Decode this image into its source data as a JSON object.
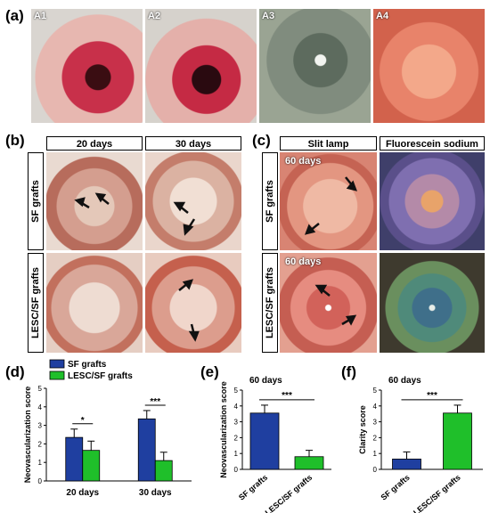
{
  "panels": {
    "a": {
      "letter": "(a)",
      "images": [
        {
          "label": "A1"
        },
        {
          "label": "A2"
        },
        {
          "label": "A3"
        },
        {
          "label": "A4"
        }
      ]
    },
    "b": {
      "letter": "(b)",
      "col_headers": [
        "20 days",
        "30 days"
      ],
      "row_headers": [
        "SF grafts",
        "LESC/SF grafts"
      ]
    },
    "c": {
      "letter": "(c)",
      "col_headers": [
        "Slit lamp",
        "Fluorescein sodium"
      ],
      "row_headers": [
        "SF grafts",
        "LESC/SF grafts"
      ],
      "day_labels": [
        "60 days",
        "60 days"
      ]
    },
    "d": {
      "letter": "(d)"
    },
    "e": {
      "letter": "(e)"
    },
    "f": {
      "letter": "(f)"
    }
  },
  "colors": {
    "sf": "#1f3fa0",
    "lesc": "#1fbf2a"
  },
  "chart_data": [
    {
      "id": "d",
      "type": "bar",
      "categories": [
        "20 days",
        "30 days"
      ],
      "series": [
        {
          "name": "SF grafts",
          "values": [
            2.35,
            3.35
          ],
          "errors": [
            0.45,
            0.45
          ]
        },
        {
          "name": "LESC/SF grafts",
          "values": [
            1.65,
            1.1
          ],
          "errors": [
            0.5,
            0.45
          ]
        }
      ],
      "ylabel": "Neovascularization score",
      "ylim": [
        0,
        5
      ],
      "yticks": [
        "0",
        "1",
        "2",
        "3",
        "4",
        "5"
      ],
      "significance": [
        "*",
        "***"
      ],
      "legend": "top-left"
    },
    {
      "id": "e",
      "type": "bar",
      "categories": [
        "SF grafts",
        "LESC/SF grafts"
      ],
      "values": [
        3.55,
        0.8
      ],
      "errors": [
        0.5,
        0.4
      ],
      "title": "60 days",
      "ylabel": "Neovascularization score",
      "ylim": [
        0,
        5
      ],
      "yticks": [
        "0",
        "1",
        "2",
        "3",
        "4",
        "5"
      ],
      "significance": "***"
    },
    {
      "id": "f",
      "type": "bar",
      "categories": [
        "SF grafts",
        "LESC/SF grafts"
      ],
      "values": [
        0.65,
        3.55
      ],
      "errors": [
        0.45,
        0.5
      ],
      "title": "60 days",
      "ylabel": "Clarity score",
      "ylim": [
        0,
        5
      ],
      "yticks": [
        "0",
        "1",
        "2",
        "3",
        "4",
        "5"
      ],
      "significance": "***"
    }
  ]
}
